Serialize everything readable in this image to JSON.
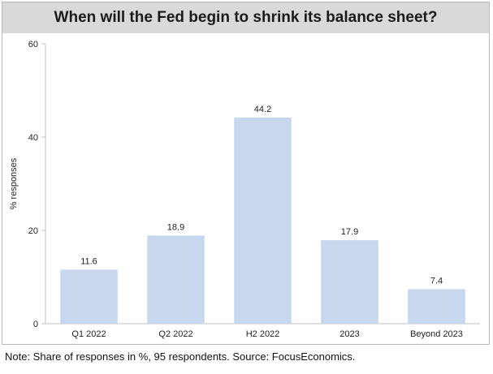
{
  "chart_data": {
    "type": "bar",
    "title": "When will the Fed begin to shrink its balance sheet?",
    "ylabel": "% responses",
    "xlabel": "",
    "categories": [
      "Q1 2022",
      "Q2 2022",
      "H2 2022",
      "2023",
      "Beyond 2023"
    ],
    "values": [
      11.6,
      18.9,
      44.2,
      17.9,
      7.4
    ],
    "ylim": [
      0,
      60
    ],
    "yticks": [
      0,
      20,
      40,
      60
    ],
    "grid": false,
    "legend": "none",
    "bar_color": "#c7d7ee",
    "axis_color": "#bfbfbf"
  },
  "note": "Note: Share of responses in %, 95 respondents. Source: FocusEconomics."
}
